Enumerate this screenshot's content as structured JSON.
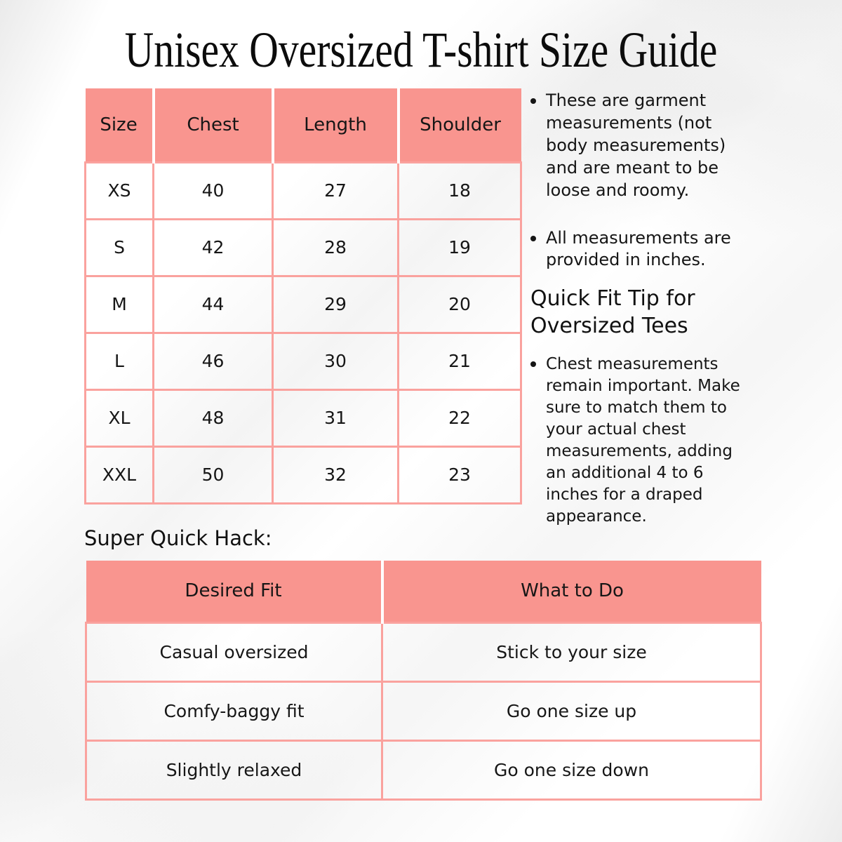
{
  "title": "Unisex Oversized T-shirt Size Guide",
  "colors": {
    "pink": "#F9958F",
    "pink_border": "#FAA29E",
    "text": "#1B1B1B"
  },
  "size_table": {
    "headers": [
      "Size",
      "Chest",
      "Length",
      "Shoulder"
    ],
    "rows": [
      [
        "XS",
        "40",
        "27",
        "18"
      ],
      [
        "S",
        "42",
        "28",
        "19"
      ],
      [
        "M",
        "44",
        "29",
        "20"
      ],
      [
        "L",
        "46",
        "30",
        "21"
      ],
      [
        "XL",
        "48",
        "31",
        "22"
      ],
      [
        "XXL",
        "50",
        "32",
        "23"
      ]
    ]
  },
  "notes": {
    "bullets": [
      "These are garment measurements (not body measurements) and are meant to be loose and roomy.",
      "All measurements are provided in inches."
    ]
  },
  "tip": {
    "heading": "Quick Fit Tip for Oversized Tees",
    "bullets": [
      "Chest measurements remain important. Make sure to match them to your actual chest measurements, adding an additional 4 to 6 inches for a draped appearance."
    ]
  },
  "hack": {
    "heading": "Super Quick Hack:",
    "table": {
      "headers": [
        "Desired Fit",
        "What to Do"
      ],
      "rows": [
        [
          "Casual oversized",
          "Stick to your size"
        ],
        [
          "Comfy-baggy fit",
          "Go one size up"
        ],
        [
          "Slightly relaxed",
          "Go one size down"
        ]
      ]
    }
  }
}
